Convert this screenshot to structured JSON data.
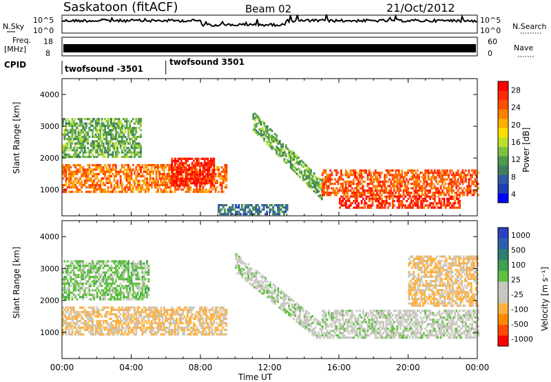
{
  "header": {
    "station": "Saskatoon (fitACF)",
    "beam": "Beam 02",
    "date": "21/Oct/2012"
  },
  "top_panels": {
    "nsky_label": "N.Sky",
    "nsky_ticks": [
      "10^5",
      "10^0"
    ],
    "nsearch_label": "N.Search",
    "freq_label_1": "Freq.",
    "freq_label_2": "[MHz]",
    "freq_ticks": [
      "18",
      "8"
    ],
    "nave_ticks": [
      "60",
      "0"
    ],
    "nave_label": "Nave",
    "cpid_label": "CPID",
    "cpid_segments": [
      {
        "label": "twofsound -3501",
        "start_hour": 0,
        "end_hour": 6
      },
      {
        "label": "twofsound 3501",
        "start_hour": 6,
        "end_hour": 24
      }
    ]
  },
  "axes": {
    "xlabel": "Time UT",
    "x_ticks": [
      "00:00",
      "04:00",
      "08:00",
      "12:00",
      "16:00",
      "20:00",
      "00:00"
    ],
    "ylabel": "Slant Range [km]",
    "y_ticks": [
      "1000",
      "2000",
      "3000",
      "4000"
    ]
  },
  "colors": {
    "power_scale": [
      "#0000ff",
      "#1a3fb4",
      "#2f5aa8",
      "#3f7f5a",
      "#4d9a4d",
      "#7fc040",
      "#bde02a",
      "#ffe000",
      "#ffb000",
      "#ff8000",
      "#ff5000",
      "#ff2a00",
      "#ff0000"
    ],
    "velocity_scale": [
      "#ff0000",
      "#ff4a00",
      "#ff8a00",
      "#ffb040",
      "#c8c8c0",
      "#c8c8c0",
      "#60c040",
      "#3fa050",
      "#2f7f70",
      "#2a5fb0",
      "#2a40c0"
    ]
  },
  "chart_data": [
    {
      "type": "heatmap",
      "title": "Power",
      "colorbar_label": "Power [dB]",
      "colorbar_ticks": [
        "28",
        "24",
        "20",
        "16",
        "12",
        "8",
        "4"
      ],
      "xlim": [
        0,
        24
      ],
      "ylim": [
        180,
        4500
      ],
      "features": [
        {
          "region": "near-range band",
          "start_hour": 0,
          "end_hour": 9.5,
          "range_km": [
            900,
            1800
          ],
          "power_db": 24
        },
        {
          "region": "enhanced patch",
          "start_hour": 6.3,
          "end_hour": 8.8,
          "range_km": [
            1100,
            2000
          ],
          "power_db": 30
        },
        {
          "region": "upper scatter",
          "start_hour": 0,
          "end_hour": 4.5,
          "range_km": [
            2000,
            3200
          ],
          "power_db": 12
        },
        {
          "region": "diagonal arc",
          "start_hour": 11,
          "end_hour": 15,
          "range_km": [
            1000,
            3200
          ],
          "power_db": 12
        },
        {
          "region": "late band",
          "start_hour": 15,
          "end_hour": 24,
          "range_km": [
            800,
            1600
          ],
          "power_db": 26
        },
        {
          "region": "near-range red",
          "start_hour": 16,
          "end_hour": 23,
          "range_km": [
            400,
            800
          ],
          "power_db": 28
        },
        {
          "region": "ground echoes",
          "start_hour": 9,
          "end_hour": 13,
          "range_km": [
            200,
            500
          ],
          "power_db": 8
        }
      ]
    },
    {
      "type": "heatmap",
      "title": "Velocity",
      "colorbar_label": "Velocity [m s⁻¹]",
      "colorbar_ticks": [
        "1000",
        "500",
        "100",
        "25",
        "-25",
        "-100",
        "-500",
        "-1000"
      ],
      "xlim": [
        0,
        24
      ],
      "ylim": [
        180,
        4500
      ],
      "features": [
        {
          "region": "near-range band",
          "start_hour": 0,
          "end_hour": 9.5,
          "range_km": [
            900,
            1800
          ],
          "velocity_ms": -300
        },
        {
          "region": "upper scatter",
          "start_hour": 0,
          "end_hour": 5,
          "range_km": [
            2000,
            3200
          ],
          "velocity_ms": 150
        },
        {
          "region": "diagonal arc",
          "start_hour": 10,
          "end_hour": 15,
          "range_km": [
            1000,
            3200
          ],
          "velocity_ms": 0
        },
        {
          "region": "late band",
          "start_hour": 15,
          "end_hour": 24,
          "range_km": [
            800,
            1700
          ],
          "velocity_ms": 0
        },
        {
          "region": "late patches",
          "start_hour": 20,
          "end_hour": 24,
          "range_km": [
            1800,
            3400
          ],
          "velocity_ms": -300
        }
      ]
    }
  ]
}
